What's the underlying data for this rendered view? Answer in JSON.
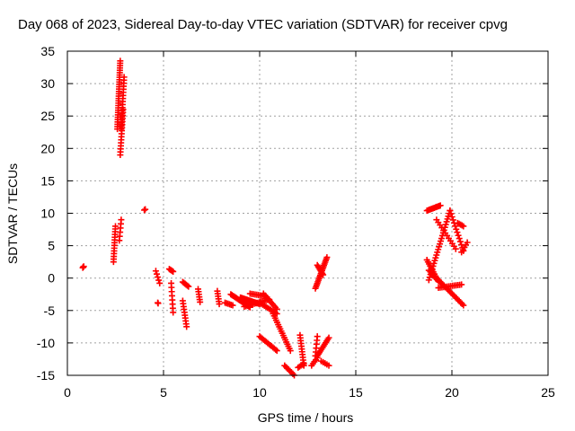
{
  "chart_data": {
    "type": "scatter",
    "title": "Day 068 of 2023, Sidereal Day-to-day VTEC variation (SDTVAR) for receiver cpvg",
    "xlabel": "GPS time / hours",
    "ylabel": "SDTVAR / TECUs",
    "xlim": [
      0,
      25
    ],
    "ylim": [
      -15,
      35
    ],
    "xticks": [
      "0",
      "5",
      "10",
      "15",
      "20",
      "25"
    ],
    "yticks": [
      "-15",
      "-10",
      "-5",
      "0",
      "5",
      "10",
      "15",
      "20",
      "25",
      "30",
      "35"
    ],
    "grid": true,
    "marker": "+",
    "color": "#ff0000",
    "segments": [
      {
        "from": [
          0.8,
          1.6
        ],
        "to": [
          0.85,
          1.8
        ],
        "n": 3
      },
      {
        "from": [
          2.4,
          2.5
        ],
        "to": [
          2.5,
          8.0
        ],
        "n": 14
      },
      {
        "from": [
          2.6,
          23.0
        ],
        "to": [
          2.75,
          33.5
        ],
        "n": 30
      },
      {
        "from": [
          2.75,
          19.0
        ],
        "to": [
          2.9,
          26.0
        ],
        "n": 16
      },
      {
        "from": [
          2.8,
          23.0
        ],
        "to": [
          2.95,
          31.0
        ],
        "n": 18
      },
      {
        "from": [
          2.7,
          5.8
        ],
        "to": [
          2.8,
          9.0
        ],
        "n": 6
      },
      {
        "from": [
          4.0,
          10.5
        ],
        "to": [
          4.05,
          10.6
        ],
        "n": 2
      },
      {
        "from": [
          4.6,
          1.1
        ],
        "to": [
          4.8,
          -0.8
        ],
        "n": 5
      },
      {
        "from": [
          4.7,
          -3.8
        ],
        "to": [
          4.72,
          -3.9
        ],
        "n": 2
      },
      {
        "from": [
          5.3,
          1.4
        ],
        "to": [
          5.5,
          1.0
        ],
        "n": 5
      },
      {
        "from": [
          5.4,
          -0.8
        ],
        "to": [
          5.5,
          -5.3
        ],
        "n": 8
      },
      {
        "from": [
          6.0,
          -0.6
        ],
        "to": [
          6.3,
          -1.3
        ],
        "n": 6
      },
      {
        "from": [
          6.0,
          -3.5
        ],
        "to": [
          6.2,
          -7.5
        ],
        "n": 10
      },
      {
        "from": [
          6.8,
          -1.7
        ],
        "to": [
          6.9,
          -3.7
        ],
        "n": 6
      },
      {
        "from": [
          7.8,
          -2.0
        ],
        "to": [
          7.9,
          -4.0
        ],
        "n": 6
      },
      {
        "from": [
          8.2,
          -3.8
        ],
        "to": [
          8.6,
          -4.2
        ],
        "n": 6
      },
      {
        "from": [
          8.5,
          -2.5
        ],
        "to": [
          9.5,
          -4.5
        ],
        "n": 18
      },
      {
        "from": [
          9.0,
          -3.0
        ],
        "to": [
          10.0,
          -4.0
        ],
        "n": 18
      },
      {
        "from": [
          9.2,
          -4.4
        ],
        "to": [
          10.5,
          -3.3
        ],
        "n": 16
      },
      {
        "from": [
          9.5,
          -2.4
        ],
        "to": [
          10.3,
          -2.8
        ],
        "n": 10
      },
      {
        "from": [
          10.0,
          -3.8
        ],
        "to": [
          10.9,
          -5.5
        ],
        "n": 12
      },
      {
        "from": [
          10.0,
          -9.0
        ],
        "to": [
          10.9,
          -11.2
        ],
        "n": 14
      },
      {
        "from": [
          10.2,
          -2.4
        ],
        "to": [
          10.9,
          -4.8
        ],
        "n": 10
      },
      {
        "from": [
          10.7,
          -5.5
        ],
        "to": [
          11.6,
          -11.2
        ],
        "n": 18
      },
      {
        "from": [
          11.3,
          -13.5
        ],
        "to": [
          11.8,
          -15.0
        ],
        "n": 8
      },
      {
        "from": [
          12.1,
          -8.8
        ],
        "to": [
          12.3,
          -13.5
        ],
        "n": 12
      },
      {
        "from": [
          12.0,
          -13.8
        ],
        "to": [
          12.3,
          -13.2
        ],
        "n": 5
      },
      {
        "from": [
          12.9,
          -12.0
        ],
        "to": [
          13.0,
          -9.0
        ],
        "n": 6
      },
      {
        "from": [
          12.9,
          -1.6
        ],
        "to": [
          13.5,
          3.2
        ],
        "n": 20
      },
      {
        "from": [
          13.0,
          2.0
        ],
        "to": [
          13.3,
          0.5
        ],
        "n": 8
      },
      {
        "from": [
          12.7,
          -13.5
        ],
        "to": [
          13.0,
          -12.3
        ],
        "n": 5
      },
      {
        "from": [
          13.0,
          -12.0
        ],
        "to": [
          13.6,
          -9.2
        ],
        "n": 12
      },
      {
        "from": [
          13.2,
          -12.8
        ],
        "to": [
          13.6,
          -13.5
        ],
        "n": 5
      },
      {
        "from": [
          18.7,
          10.4
        ],
        "to": [
          19.4,
          11.2
        ],
        "n": 12
      },
      {
        "from": [
          18.7,
          2.8
        ],
        "to": [
          19.2,
          0.0
        ],
        "n": 10
      },
      {
        "from": [
          18.8,
          -0.3
        ],
        "to": [
          19.9,
          10.4
        ],
        "n": 26
      },
      {
        "from": [
          19.9,
          10.4
        ],
        "to": [
          20.6,
          4.2
        ],
        "n": 14
      },
      {
        "from": [
          19.2,
          9.0
        ],
        "to": [
          20.2,
          4.5
        ],
        "n": 12
      },
      {
        "from": [
          20.3,
          8.5
        ],
        "to": [
          20.6,
          8.0
        ],
        "n": 5
      },
      {
        "from": [
          20.5,
          4.0
        ],
        "to": [
          20.8,
          5.5
        ],
        "n": 5
      },
      {
        "from": [
          18.8,
          1.2
        ],
        "to": [
          20.6,
          -4.2
        ],
        "n": 26
      },
      {
        "from": [
          19.3,
          -1.5
        ],
        "to": [
          20.5,
          -1.0
        ],
        "n": 14
      },
      {
        "from": [
          19.0,
          0.5
        ],
        "to": [
          19.3,
          -0.5
        ],
        "n": 5
      }
    ]
  }
}
